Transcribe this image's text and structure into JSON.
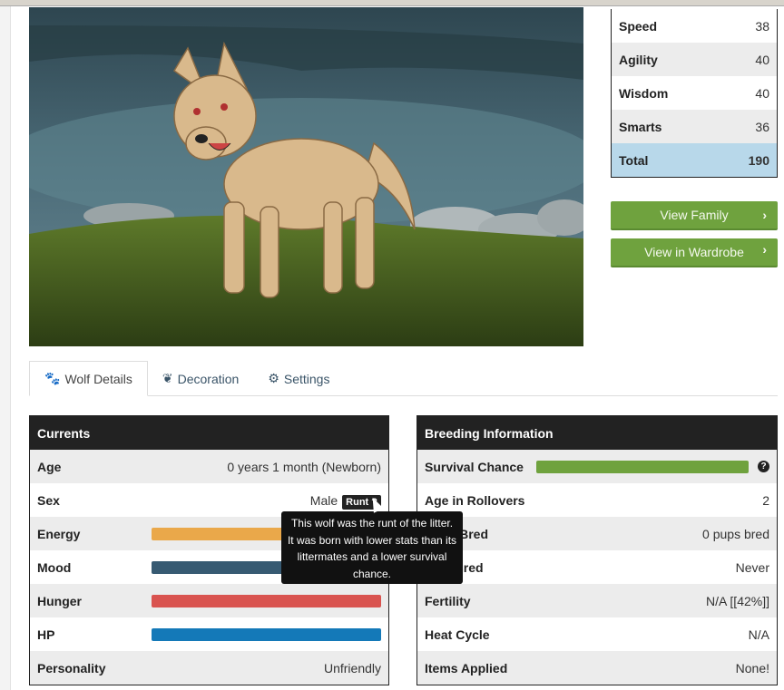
{
  "stats": [
    {
      "label": "Speed",
      "value": "38"
    },
    {
      "label": "Agility",
      "value": "40"
    },
    {
      "label": "Wisdom",
      "value": "40"
    },
    {
      "label": "Smarts",
      "value": "36"
    }
  ],
  "stats_total": {
    "label": "Total",
    "value": "190"
  },
  "buttons": {
    "view_family": "View Family",
    "view_wardrobe": "View in Wardrobe"
  },
  "tabs": [
    {
      "label": "Wolf Details",
      "icon": "paw-icon"
    },
    {
      "label": "Decoration",
      "icon": "leaf-icon"
    },
    {
      "label": "Settings",
      "icon": "gear-icon"
    }
  ],
  "currents": {
    "title": "Currents",
    "age": {
      "label": "Age",
      "value": "0 years 1 month (Newborn)"
    },
    "sex": {
      "label": "Sex",
      "value": "Male",
      "badge": "Runt"
    },
    "energy": {
      "label": "Energy",
      "percent": 100,
      "color": "#eaa84a"
    },
    "mood": {
      "label": "Mood",
      "percent": 100,
      "color": "#375a72"
    },
    "hunger": {
      "label": "Hunger",
      "percent": 100,
      "color": "#d9534f"
    },
    "hp": {
      "label": "HP",
      "percent": 100,
      "color": "#1479b8"
    },
    "personality": {
      "label": "Personality",
      "value": "Unfriendly"
    }
  },
  "breeding": {
    "title": "Breeding Information",
    "survival": {
      "label": "Survival Chance",
      "percent": 100,
      "color": "#6fa23e"
    },
    "rows": [
      {
        "label": "Age in Rollovers",
        "value": "2"
      },
      {
        "label": "Pups Bred",
        "value": "0 pups bred"
      },
      {
        "label": "Last Bred",
        "value": "Never"
      },
      {
        "label": "Fertility",
        "value": "N/A [[42%]]"
      },
      {
        "label": "Heat Cycle",
        "value": "N/A"
      },
      {
        "label": "Items Applied",
        "value": "None!"
      }
    ]
  },
  "tooltip": "This wolf was the runt of the litter. It was born with lower stats than its littermates and a lower survival chance."
}
